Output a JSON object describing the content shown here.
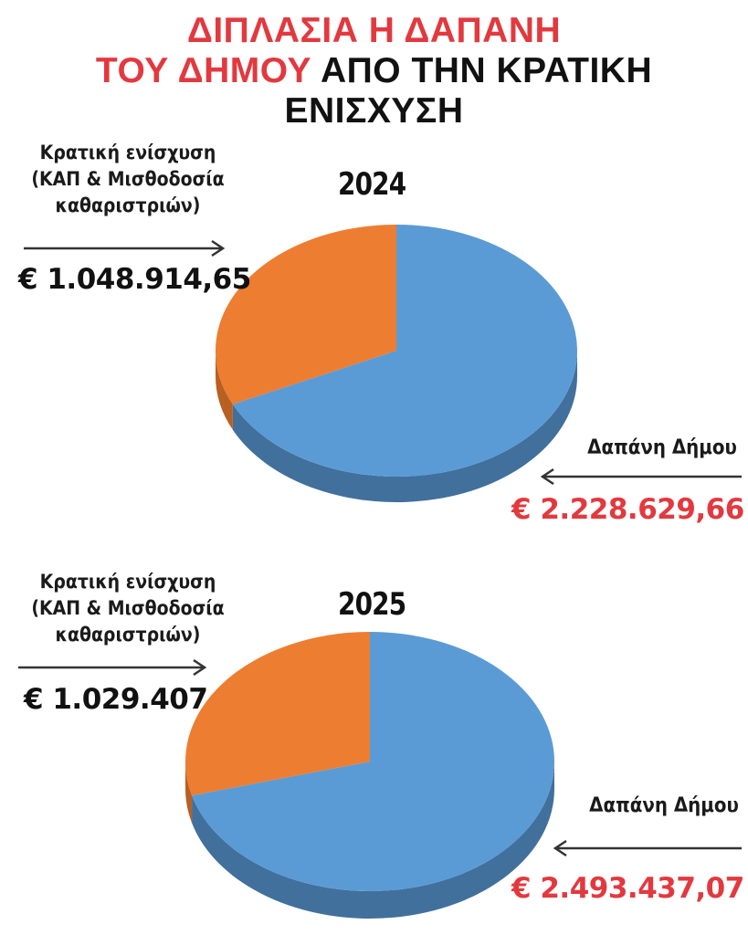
{
  "title": {
    "line1": "ΔΙΠΛΑΣΙΑ Η ΔΑΠΑΝΗ",
    "line2_red": "ΤΟΥ ΔΗΜΟΥ",
    "line2_black": " ΑΠΟ ΤΗΝ ΚΡΑΤΙΚΗ",
    "line3": "ΕΝΙΣΧΥΣΗ"
  },
  "colors": {
    "red_text": "#e2393f",
    "orange_slice": "#ed7d31",
    "orange_side": "#b85f22",
    "blue_slice": "#5b9bd5",
    "blue_side": "#41709c"
  },
  "labels": {
    "state_aid_line1": "Κρατική ενίσχυση",
    "state_aid_line2": "(ΚΑΠ & Μισθοδοσία",
    "state_aid_line3": "καθαριστριών)",
    "municipal_spending": "Δαπάνη Δήμου"
  },
  "chart_data": [
    {
      "type": "pie",
      "title": "2024",
      "categories": [
        "Κρατική ενίσχυση (ΚΑΠ & Μισθοδοσία καθαριστριών)",
        "Δαπάνη Δήμου"
      ],
      "values": [
        1048914.65,
        2228629.66
      ],
      "value_labels": [
        "€ 1.048.914,65",
        "€ 2.228.629,66"
      ]
    },
    {
      "type": "pie",
      "title": "2025",
      "categories": [
        "Κρατική ενίσχυση (ΚΑΠ & Μισθοδοσία καθαριστριών)",
        "Δαπάνη Δήμου"
      ],
      "values": [
        1029407,
        2493437.07
      ],
      "value_labels": [
        "€ 1.029.407",
        "€ 2.493.437,07"
      ]
    }
  ]
}
